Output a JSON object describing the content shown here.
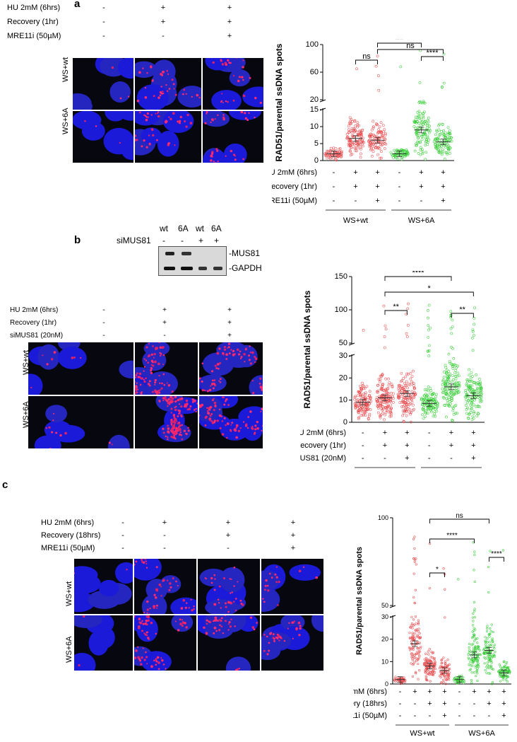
{
  "panel_a": {
    "label": "a",
    "conditions": [
      "HU 2mM (6hrs)",
      "Recovery (1hr)",
      "MRE11i (50µM)"
    ],
    "symbols": [
      [
        "-",
        "+",
        "+"
      ],
      [
        "-",
        "+",
        "+"
      ],
      [
        "-",
        "-",
        "+"
      ]
    ],
    "rows": [
      "WS+wt",
      "WS+6A"
    ]
  },
  "panel_b": {
    "label": "b",
    "blot_columns": [
      "wt",
      "6A",
      "wt",
      "6A"
    ],
    "blot_si_label": "siMUS81",
    "blot_si_symbols": [
      "-",
      "-",
      "+",
      "+"
    ],
    "blot_bands": [
      "-MUS81",
      "-GAPDH"
    ],
    "conditions": [
      "HU 2mM (6hrs)",
      "Recovery (1hr)",
      "siMUS81 (20nM)"
    ],
    "symbols": [
      [
        "-",
        "+",
        "+"
      ],
      [
        "-",
        "+",
        "+"
      ],
      [
        "-",
        "-",
        "+"
      ]
    ],
    "rows": [
      "WS+wt",
      "WS+6A"
    ]
  },
  "panel_c": {
    "label": "c",
    "conditions": [
      "HU 2mM (6hrs)",
      "Recovery (18hrs)",
      "MRE11i (50µM)"
    ],
    "symbols": [
      [
        "-",
        "+",
        "+",
        "+"
      ],
      [
        "-",
        "-",
        "+",
        "+"
      ],
      [
        "-",
        "-",
        "-",
        "+"
      ]
    ],
    "rows": [
      "WS+wt",
      "WS+6A"
    ]
  },
  "chart_data": [
    {
      "type": "scatter",
      "panel": "a",
      "ylabel": "RAD51/parental ssDNA spots",
      "y_ticks_lower": [
        0,
        5,
        10,
        15
      ],
      "y_ticks_upper": [
        20,
        60,
        100
      ],
      "groups": [
        "WS+wt",
        "WS+6A"
      ],
      "conditions": [
        "HU 2mM (6hrs)",
        "Recovery (1hr)",
        "MRE11i (50µM)"
      ],
      "condition_symbols": [
        [
          "-",
          "+",
          "+",
          "-",
          "+",
          "+"
        ],
        [
          "-",
          "+",
          "+",
          "-",
          "+",
          "+"
        ],
        [
          "-",
          "-",
          "+",
          "-",
          "-",
          "+"
        ]
      ],
      "series": [
        {
          "color": "#e8484b",
          "means": [
            2,
            6.5,
            6
          ]
        },
        {
          "color": "#33cc33",
          "means": [
            2,
            9,
            5.5
          ]
        }
      ],
      "significance": [
        {
          "from": 3,
          "to": 5,
          "text": "***"
        },
        {
          "from": 2,
          "to": 3,
          "text": "ns"
        },
        {
          "from": 3,
          "to": 6,
          "text": "ns"
        },
        {
          "from": 5,
          "to": 6,
          "text": "****"
        }
      ]
    },
    {
      "type": "scatter",
      "panel": "b",
      "ylabel": "RAD51/parental ssDNA spots",
      "y_ticks_lower": [
        0,
        10,
        20,
        30
      ],
      "y_ticks_upper": [
        50,
        100,
        150
      ],
      "groups": [
        "WS+wt",
        "WS+6A"
      ],
      "conditions": [
        "HU 2mM (6hrs)",
        "Recovery (1hr)",
        "siMUS81 (20nM)"
      ],
      "condition_symbols": [
        [
          "-",
          "+",
          "+",
          "-",
          "+",
          "+"
        ],
        [
          "-",
          "+",
          "+",
          "-",
          "+",
          "+"
        ],
        [
          "-",
          "-",
          "+",
          "-",
          "-",
          "+"
        ]
      ],
      "series": [
        {
          "color": "#e8484b",
          "means": [
            9,
            11,
            13
          ]
        },
        {
          "color": "#33cc33",
          "means": [
            8.5,
            16,
            12
          ]
        }
      ],
      "significance": [
        {
          "from": 2,
          "to": 5,
          "text": "****"
        },
        {
          "from": 2,
          "to": 6,
          "text": "*"
        },
        {
          "from": 2,
          "to": 3,
          "text": "**"
        },
        {
          "from": 5,
          "to": 6,
          "text": "**"
        }
      ]
    },
    {
      "type": "scatter",
      "panel": "c",
      "ylabel": "RAD51/parental ssDNA spots",
      "y_ticks_lower": [
        0,
        10,
        20,
        30
      ],
      "y_ticks_upper": [
        50,
        100
      ],
      "groups": [
        "WS+wt",
        "WS+6A"
      ],
      "conditions": [
        "HU 2mM (6hrs)",
        "Recovery (18hrs)",
        "MRE11i (50µM)"
      ],
      "condition_symbols": [
        [
          "-",
          "+",
          "+",
          "+",
          "-",
          "+",
          "+",
          "+"
        ],
        [
          "-",
          "-",
          "+",
          "+",
          "-",
          "-",
          "+",
          "+"
        ],
        [
          "-",
          "-",
          "-",
          "+",
          "-",
          "-",
          "-",
          "+"
        ]
      ],
      "series": [
        {
          "color": "#e8484b",
          "means": [
            2,
            18,
            8,
            6
          ]
        },
        {
          "color": "#33cc33",
          "means": [
            2,
            13,
            15,
            5
          ]
        }
      ],
      "significance": [
        {
          "from": 3,
          "to": 7,
          "text": "ns"
        },
        {
          "from": 3,
          "to": 6,
          "text": "****"
        },
        {
          "from": 3,
          "to": 4,
          "text": "*"
        },
        {
          "from": 7,
          "to": 8,
          "text": "****"
        }
      ]
    }
  ]
}
